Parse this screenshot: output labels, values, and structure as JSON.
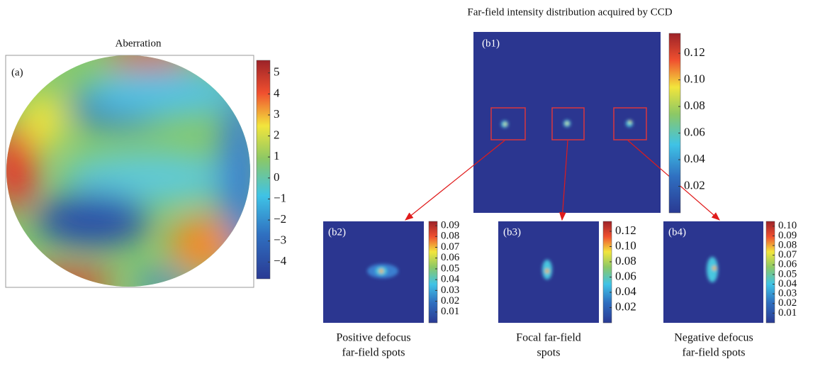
{
  "panel_a": {
    "title": "Aberration",
    "label": "(a)",
    "colorbar": {
      "lim": [
        -4.8,
        5.6
      ],
      "ticks": [
        5,
        4,
        3,
        2,
        1,
        0,
        {
          "value": -1,
          "label": "−1"
        },
        {
          "value": -2,
          "label": "−2"
        },
        {
          "value": -3,
          "label": "−3"
        },
        {
          "value": -4,
          "label": "−4"
        }
      ]
    }
  },
  "title_b": "Far-field intensity distribution acquired by CCD",
  "panel_b1": {
    "label": "(b1)",
    "colorbar": {
      "lim": [
        0,
        0.135
      ],
      "ticks": [
        0.12,
        {
          "value": 0.1,
          "label": "0.10"
        },
        0.08,
        0.06,
        0.04,
        0.02
      ]
    }
  },
  "small_panels": [
    {
      "label": "(b2)",
      "caption": [
        "Positive defocus",
        "far-field spots"
      ],
      "colorbar": {
        "lim": [
          0,
          0.094
        ],
        "ticks": [
          0.09,
          0.08,
          0.07,
          0.06,
          0.05,
          0.04,
          0.03,
          0.02,
          0.01
        ]
      }
    },
    {
      "label": "(b3)",
      "caption": [
        "Focal far-field",
        "spots"
      ],
      "colorbar": {
        "lim": [
          0,
          0.133
        ],
        "ticks": [
          0.12,
          {
            "value": 0.1,
            "label": "0.10"
          },
          0.08,
          0.06,
          0.04,
          0.02
        ]
      }
    },
    {
      "label": "(b4)",
      "caption": [
        "Negative defocus",
        "far-field spots"
      ],
      "colorbar": {
        "lim": [
          0,
          0.105
        ],
        "ticks": [
          {
            "value": 0.1,
            "label": "0.10"
          },
          0.09,
          0.08,
          0.07,
          0.06,
          0.05,
          0.04,
          0.03,
          0.02,
          0.01
        ]
      }
    }
  ]
}
